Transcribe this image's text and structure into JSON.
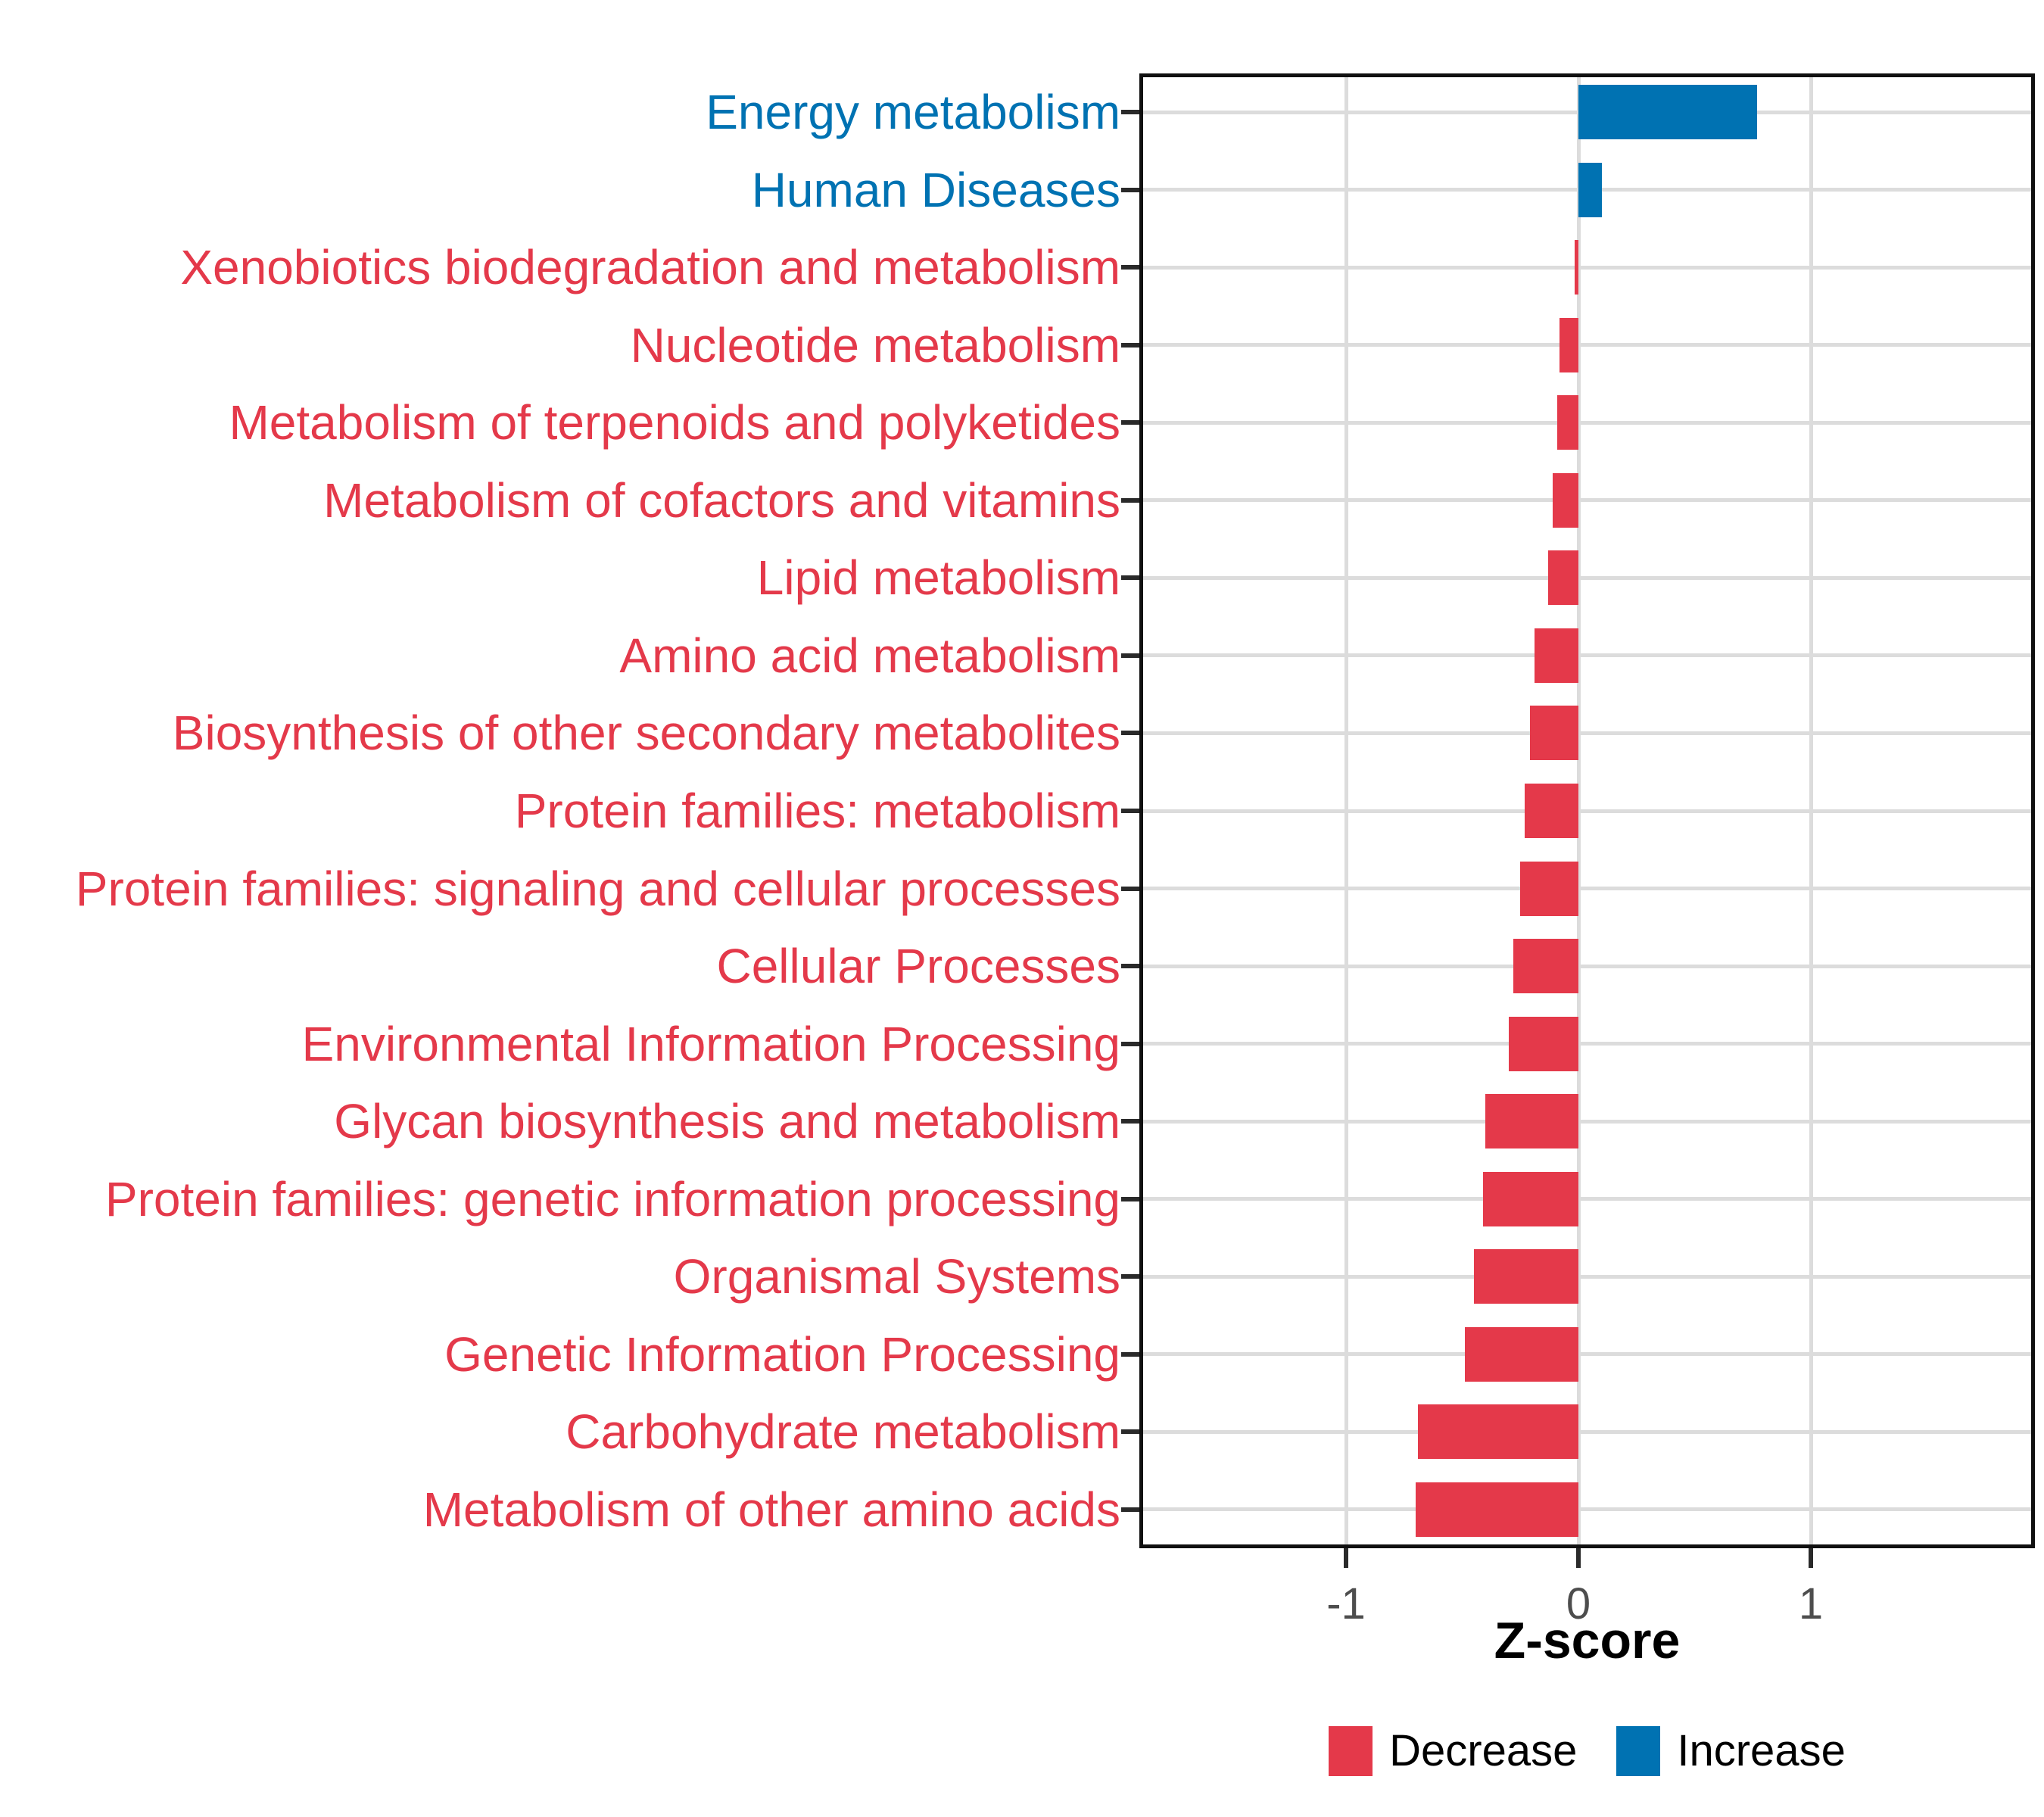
{
  "chart_data": {
    "type": "bar",
    "orientation": "horizontal",
    "title": "",
    "xlabel": "Z-score",
    "ylabel": "",
    "xlim": [
      -1.89,
      1.96
    ],
    "x_ticks": [
      -1,
      0,
      1
    ],
    "x_tick_labels": [
      "-1",
      "0",
      "1"
    ],
    "grid": "major gridlines only, light gray, white panel, black border",
    "legend_position": "bottom-center",
    "series_colors": {
      "Decrease": "#E4394A",
      "Increase": "#0072B2"
    },
    "categories": [
      "Energy metabolism",
      "Human Diseases",
      "Xenobiotics biodegradation and metabolism",
      "Nucleotide metabolism",
      "Metabolism of terpenoids and polyketides",
      "Metabolism of cofactors and vitamins",
      "Lipid metabolism",
      "Amino acid metabolism",
      "Biosynthesis of other secondary metabolites",
      "Protein families: metabolism",
      "Protein families: signaling and cellular processes",
      "Cellular Processes",
      "Environmental Information Processing",
      "Glycan biosynthesis and metabolism",
      "Protein families: genetic information processing",
      "Organismal Systems",
      "Genetic Information Processing",
      "Carbohydrate metabolism",
      "Metabolism of other amino acids"
    ],
    "values": [
      0.77,
      0.1,
      -0.015,
      -0.08,
      -0.09,
      -0.11,
      -0.13,
      -0.19,
      -0.21,
      -0.23,
      -0.25,
      -0.28,
      -0.3,
      -0.4,
      -0.41,
      -0.45,
      -0.49,
      -0.69,
      -0.7
    ],
    "groups": [
      "Increase",
      "Increase",
      "Decrease",
      "Decrease",
      "Decrease",
      "Decrease",
      "Decrease",
      "Decrease",
      "Decrease",
      "Decrease",
      "Decrease",
      "Decrease",
      "Decrease",
      "Decrease",
      "Decrease",
      "Decrease",
      "Decrease",
      "Decrease",
      "Decrease"
    ]
  },
  "axis": {
    "x_title": "Z-score"
  },
  "legend": {
    "items": [
      {
        "label": "Decrease",
        "color": "#E4394A"
      },
      {
        "label": "Increase",
        "color": "#0072B2"
      }
    ]
  },
  "colors": {
    "increase": "#0072B2",
    "decrease": "#E4394A",
    "gridline": "#DCDCDC",
    "panel_border": "#101010",
    "axis_tick": "#2a2a2a",
    "axis_tick_text": "#4d4d4d",
    "background": "#ffffff"
  }
}
